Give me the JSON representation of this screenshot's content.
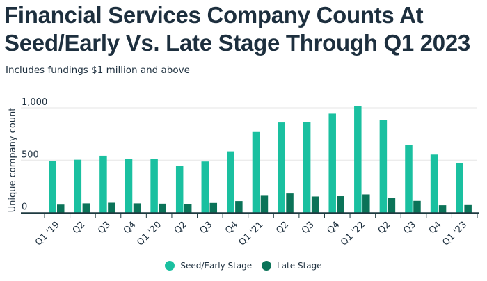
{
  "chart_data": {
    "type": "bar",
    "title": "Financial Services Company Counts At Seed/Early Vs. Late Stage Through Q1 2023",
    "subtitle": "Includes fundings $1 million and above",
    "xlabel": "",
    "ylabel": "Unique company count",
    "ylim": [
      0,
      1000
    ],
    "yticks": [
      0,
      500,
      1000
    ],
    "ytick_labels": [
      "0",
      "500",
      "1,000"
    ],
    "grid": true,
    "legend_position": "bottom",
    "categories": [
      "Q1 '19",
      "Q2",
      "Q3",
      "Q4",
      "Q1 '20",
      "Q2",
      "Q3",
      "Q4",
      "Q1 '21",
      "Q2",
      "Q3",
      "Q4",
      "Q1 '22",
      "Q2",
      "Q3",
      "Q4",
      "Q1 '23"
    ],
    "series": [
      {
        "name": "Seed/Early Stage",
        "color": "#1AC0A0",
        "values": [
          489,
          504,
          542,
          513,
          509,
          442,
          487,
          584,
          769,
          860,
          867,
          944,
          1018,
          887,
          647,
          553,
          473
        ]
      },
      {
        "name": "Late Stage",
        "color": "#0B7358",
        "values": [
          75,
          87,
          93,
          87,
          84,
          78,
          91,
          109,
          160,
          182,
          153,
          156,
          173,
          140,
          111,
          69,
          71
        ]
      }
    ]
  },
  "colors": {
    "text": "#1d2f3e",
    "axis": "#1e3a40",
    "grid": "#e6e6e6"
  }
}
